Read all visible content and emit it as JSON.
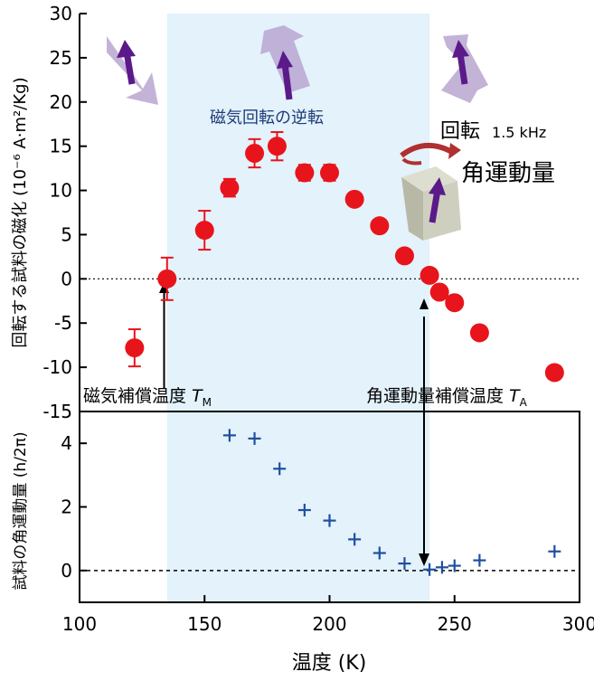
{
  "colors": {
    "band": "#e3f2fb",
    "marker": "#e8141c",
    "errorbar": "#e8141c",
    "cross": "#1f4fa0",
    "band_label": "#1f3c78",
    "arrow_purple": "#5a1a8a",
    "arrow_lilac": "#b9a6d0",
    "block": "#c8c8b8",
    "rotation_arrow": "#b03030"
  },
  "icons": {
    "spin_arrow": "purple-arrow-icon",
    "rotation": "rotation-arrow-icon",
    "block": "rotating-block-icon"
  },
  "chart_data": [
    {
      "type": "scatter",
      "panel": "top",
      "xlim": [
        100,
        300
      ],
      "ylim": [
        -15,
        30
      ],
      "yticks": [
        -15,
        -10,
        -5,
        0,
        5,
        10,
        15,
        20,
        25,
        30
      ],
      "ytick_labels": [
        "-15",
        "-10",
        "-5",
        "0",
        "5",
        "10",
        "15",
        "20",
        "25",
        "30"
      ],
      "ylabel": "回転する試料の磁化 (10⁻⁶ A·m²/Kg)",
      "series": [
        {
          "marker": "circle",
          "x": [
            122,
            135,
            150,
            160,
            170,
            179,
            190,
            200,
            210,
            220,
            230,
            240,
            244,
            250,
            260,
            290
          ],
          "y": [
            -7.8,
            0,
            5.5,
            10.3,
            14.2,
            15,
            12,
            12,
            9,
            6,
            2.6,
            0.4,
            -1.5,
            -2.7,
            -6.1,
            -10.6
          ],
          "yerr": [
            2.1,
            2.4,
            2.2,
            1.0,
            1.6,
            1.6,
            0.9,
            0.9,
            0,
            0,
            0,
            0,
            0,
            0,
            0,
            0
          ]
        }
      ],
      "band": {
        "x": [
          135,
          240
        ],
        "label": "磁気回転の逆転"
      },
      "annotations": {
        "rotation_label": "回転",
        "frequency": "1.5 kHz",
        "angular_momentum": "角運動量",
        "tm_label": "磁気補償温度 ",
        "tm_symbol": "T",
        "tm_sub": "M",
        "ta_label": "角運動量補償温度 ",
        "ta_symbol": "T",
        "ta_sub": "A"
      }
    },
    {
      "type": "scatter",
      "panel": "bottom",
      "xlim": [
        100,
        300
      ],
      "ylim": [
        -1,
        5
      ],
      "xticks": [
        100,
        150,
        200,
        250,
        300
      ],
      "xtick_labels": [
        "100",
        "150",
        "200",
        "250",
        "300"
      ],
      "yticks": [
        0,
        2,
        4
      ],
      "ytick_labels": [
        "0",
        "2",
        "4"
      ],
      "xlabel": "温度 (K)",
      "ylabel": "試料の角運動量 (h/2π)",
      "series": [
        {
          "marker": "plus",
          "x": [
            160,
            170,
            180,
            190,
            200,
            210,
            220,
            230,
            240,
            245,
            250,
            260,
            290
          ],
          "y": [
            4.25,
            4.15,
            3.2,
            1.9,
            1.57,
            0.98,
            0.55,
            0.22,
            0.03,
            0.1,
            0.15,
            0.32,
            0.6
          ]
        }
      ]
    }
  ]
}
